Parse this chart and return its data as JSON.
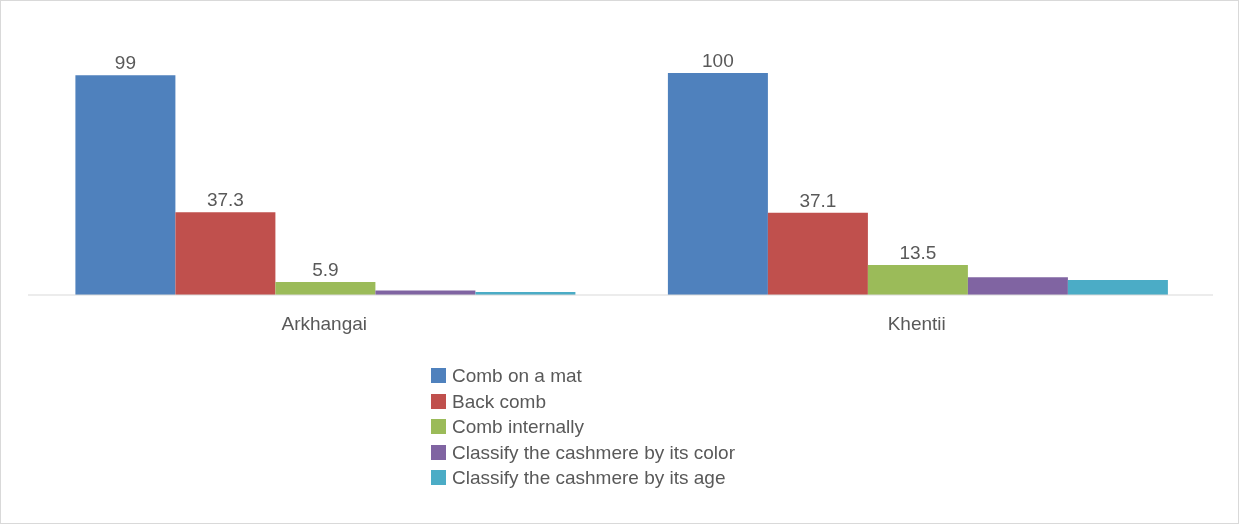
{
  "chart_data": {
    "type": "bar",
    "categories": [
      "Arkhangai",
      "Khentii"
    ],
    "series": [
      {
        "name": "Comb on a mat",
        "color": "#4f81bd",
        "values": [
          99,
          100
        ],
        "value_labels": [
          "99",
          "100"
        ]
      },
      {
        "name": "Back comb",
        "color": "#c0504d",
        "values": [
          37.3,
          37.1
        ],
        "value_labels": [
          "37.3",
          "37.1"
        ]
      },
      {
        "name": "Comb internally",
        "color": "#9bbb59",
        "values": [
          5.9,
          13.5
        ],
        "value_labels": [
          "5.9",
          "13.5"
        ]
      },
      {
        "name": "Classify the cashmere by its color",
        "color": "#8064a2",
        "values": [
          2,
          8
        ],
        "value_labels": [
          null,
          null
        ]
      },
      {
        "name": "Classify the cashmere by its age",
        "color": "#4bacc6",
        "values": [
          1.3,
          6.8
        ],
        "value_labels": [
          null,
          null
        ]
      }
    ],
    "legend": "bottom"
  }
}
